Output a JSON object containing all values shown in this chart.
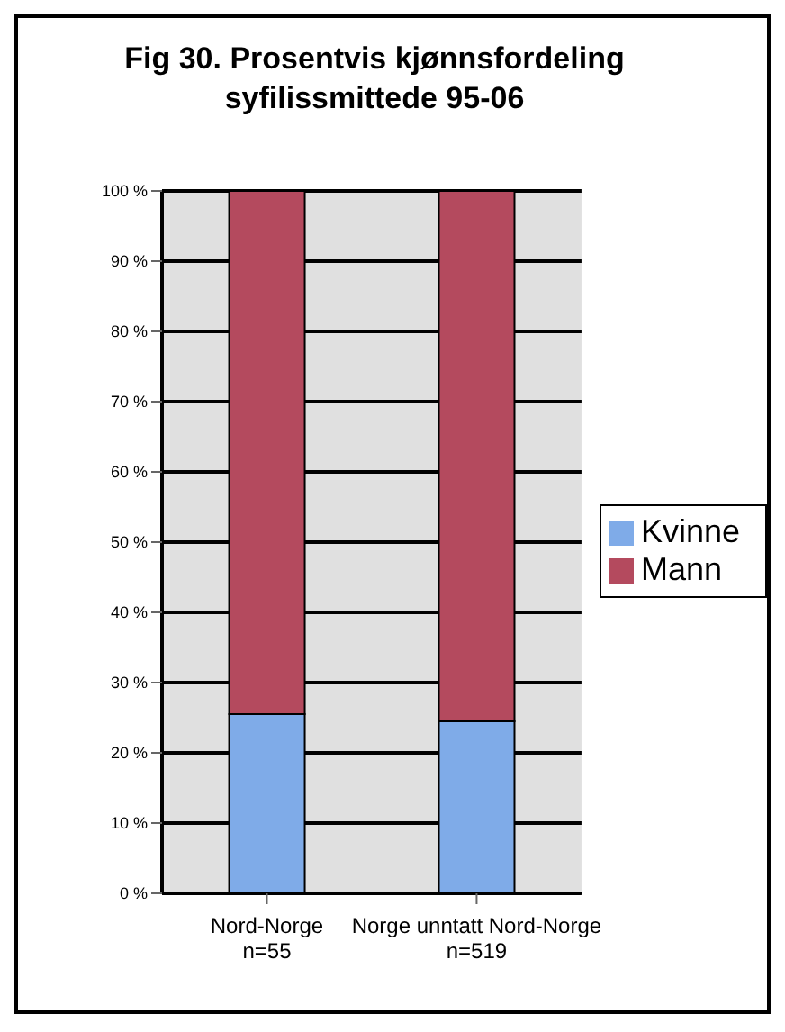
{
  "chart_data": {
    "type": "bar",
    "title": "Fig 30. Prosentvis kjønnsfordeling syfilissmittede 95-06",
    "categories": [
      "Nord-Norge\nn=55",
      "Norge unntatt Nord-Norge\nn=519"
    ],
    "stacked": true,
    "series": [
      {
        "name": "Kvinne",
        "color": "#7fabe8",
        "values": [
          25.5,
          24.5
        ]
      },
      {
        "name": "Mann",
        "color": "#b44a5e",
        "values": [
          74.5,
          75.5
        ]
      }
    ],
    "ylim": [
      0,
      100
    ],
    "yticks": [
      {
        "value": 0,
        "label": "0 %"
      },
      {
        "value": 10,
        "label": "10 %"
      },
      {
        "value": 20,
        "label": "20 %"
      },
      {
        "value": 30,
        "label": "30 %"
      },
      {
        "value": 40,
        "label": "40 %"
      },
      {
        "value": 50,
        "label": "50 %"
      },
      {
        "value": 60,
        "label": "60 %"
      },
      {
        "value": 70,
        "label": "70 %"
      },
      {
        "value": 80,
        "label": "80 %"
      },
      {
        "value": 90,
        "label": "90 %"
      },
      {
        "value": 100,
        "label": "100 %"
      }
    ],
    "grid": "y",
    "legend": "right"
  }
}
